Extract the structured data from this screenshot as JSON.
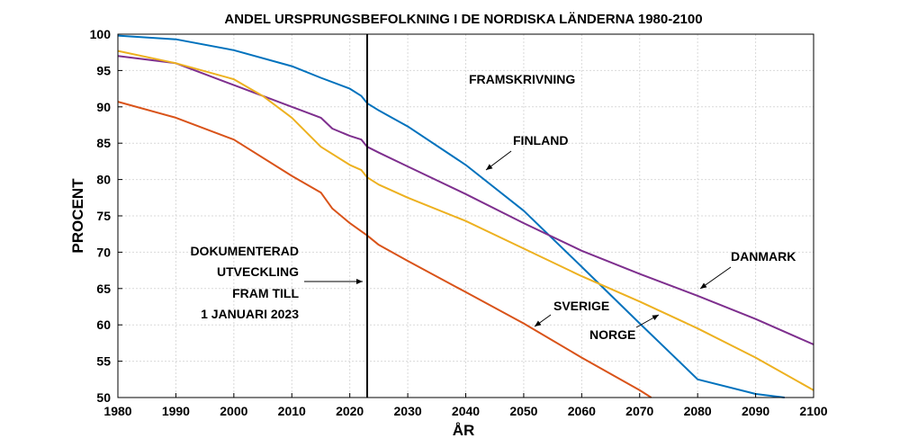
{
  "chart_data": {
    "type": "line",
    "title": "ANDEL URSPRUNGSBEFOLKNING I DE NORDISKA LÄNDERNA 1980-2100",
    "xlabel": "ÅR",
    "ylabel": "PROCENT",
    "xlim": [
      1980,
      2100
    ],
    "ylim": [
      50,
      100
    ],
    "xticks": [
      1980,
      1990,
      2000,
      2010,
      2020,
      2030,
      2040,
      2050,
      2060,
      2070,
      2080,
      2090,
      2100
    ],
    "yticks": [
      50,
      55,
      60,
      65,
      70,
      75,
      80,
      85,
      90,
      95,
      100
    ],
    "grid": true,
    "divider_year": 2023,
    "series": [
      {
        "name": "FINLAND",
        "color": "#0072BD",
        "x": [
          1980,
          1990,
          2000,
          2010,
          2015,
          2020,
          2022,
          2023,
          2025,
          2030,
          2040,
          2050,
          2060,
          2070,
          2080,
          2090,
          2095
        ],
        "y": [
          99.8,
          99.3,
          97.8,
          95.6,
          94.0,
          92.5,
          91.5,
          90.5,
          89.5,
          87.3,
          82.0,
          75.7,
          68.0,
          60.2,
          52.5,
          50.5,
          50
        ]
      },
      {
        "name": "DANMARK",
        "color": "#7E2F8E",
        "x": [
          1980,
          1990,
          2000,
          2010,
          2015,
          2017,
          2020,
          2022,
          2023,
          2025,
          2030,
          2040,
          2050,
          2060,
          2070,
          2080,
          2090,
          2100
        ],
        "y": [
          97.0,
          96.0,
          93.0,
          90.0,
          88.5,
          87.0,
          86.0,
          85.5,
          84.5,
          83.7,
          81.8,
          78.0,
          74.0,
          70.2,
          67.0,
          64.0,
          60.8,
          57.3
        ]
      },
      {
        "name": "NORGE",
        "color": "#EDB120",
        "x": [
          1980,
          1990,
          2000,
          2005,
          2010,
          2015,
          2020,
          2022,
          2023,
          2025,
          2030,
          2040,
          2050,
          2060,
          2070,
          2080,
          2090,
          2100
        ],
        "y": [
          97.7,
          96.0,
          93.8,
          91.5,
          88.5,
          84.5,
          82.0,
          81.3,
          80.3,
          79.3,
          77.5,
          74.3,
          70.5,
          66.7,
          63.2,
          59.5,
          55.5,
          51.0
        ]
      },
      {
        "name": "SVERIGE",
        "color": "#D95319",
        "x": [
          1980,
          1990,
          2000,
          2010,
          2015,
          2017,
          2020,
          2023,
          2025,
          2030,
          2040,
          2050,
          2060,
          2070,
          2072
        ],
        "y": [
          90.7,
          88.5,
          85.5,
          80.5,
          78.2,
          76.0,
          74.0,
          72.3,
          71.0,
          68.8,
          64.5,
          60.2,
          55.5,
          51.0,
          50.0
        ]
      }
    ],
    "annotations": {
      "projection": "FRAMSKRIVNING",
      "documented": [
        "DOKUMENTERAD",
        "UTVECKLING",
        "FRAM TILL",
        "1 JANUARI 2023"
      ],
      "finland": "FINLAND",
      "danmark": "DANMARK",
      "sverige": "SVERIGE",
      "norge": "NORGE"
    }
  }
}
